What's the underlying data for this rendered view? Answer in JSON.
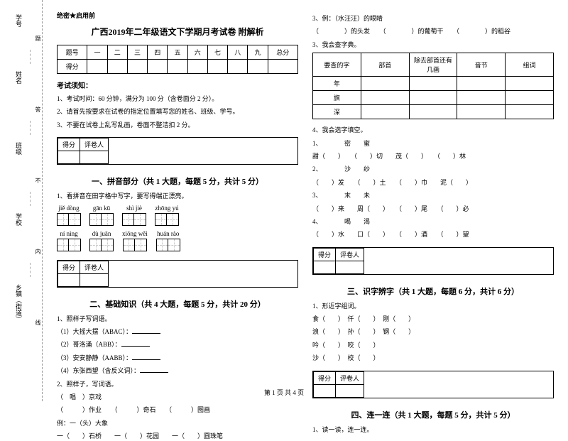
{
  "meta": {
    "secret": "绝密★启用前",
    "title": "广西2019年二年级语文下学期月考试卷 附解析",
    "footer": "第 1 页 共 4 页"
  },
  "binding": {
    "labels": [
      "学号",
      "姓名",
      "班级",
      "学校",
      "乡镇（街道）"
    ],
    "cuts": [
      "题",
      "答",
      "不",
      "内",
      "线"
    ]
  },
  "score_table": {
    "headers": [
      "题号",
      "一",
      "二",
      "三",
      "四",
      "五",
      "六",
      "七",
      "八",
      "九",
      "总分"
    ],
    "row_label": "得分"
  },
  "notice": {
    "title": "考试须知：",
    "items": [
      "1、考试时间：60 分钟，满分为 100 分（含卷面分 2 分）。",
      "2、请首先按要求在试卷的指定位置填写您的姓名、班级、学号。",
      "3、不要在试卷上乱写乱画，卷面不整洁扣 2 分。"
    ]
  },
  "scorebox": {
    "c1": "得分",
    "c2": "评卷人"
  },
  "sec1": {
    "title": "一、拼音部分（共 1 大题，每题 5 分，共计 5 分）",
    "q1": "1、看拼音在田字格中写字，要写得端正漂亮。",
    "pinyin": [
      [
        "jiě dòng",
        "gān kū",
        "shì jiè",
        "zhōng yú"
      ],
      [
        "ní nìng",
        "dù juān",
        "xiōng wěi",
        "huán rào"
      ]
    ]
  },
  "sec2": {
    "title": "二、基础知识（共 4 大题，每题 5 分，共计 20 分）",
    "q1": "1、照样子写词语。",
    "items": [
      "（1）大摇大摆（ABAC）：",
      "（2）哥洛涌（ABB）：",
      "（3）安安静静（AABB）：",
      "（4）东张西望（含反义词）："
    ],
    "q2": "2、照样子，写词语。",
    "ex2a": "（　唱　）京戏",
    "ex2b": "（　　　）作业　　（　　　）奇石　　（　　　）图画",
    "q3": "例：一（头）大象",
    "ex3": "一（　　）石桥　　一（　　）花园　　一（　　）圆珠笔"
  },
  "right": {
    "q3": "3、例：（水汪汪）的眼睛",
    "q3_line": "（　　　　）的头发　　（　　　　）的葡萄干　　（　　　　）的稻谷",
    "q_dict": "3、我会查字典。",
    "dict_headers": [
      "要查的字",
      "部首",
      "除去部首还有几画",
      "音节",
      "组词"
    ],
    "dict_chars": [
      "年",
      "旗",
      "深"
    ],
    "q4": "4、我会选字填空。",
    "lines": [
      "1、　　　　密　　蜜",
      "甜（　　）　　（　　）切　　茂（　　）　　（　　）林",
      "2、　　　　沙　　纱",
      "（　　）发　　（　　）土　　（　　）巾　　泥（　　）",
      "3、　　　　末　　未",
      "（　　）来　　周（　　）　　（　　）尾　　（　　）必",
      "4、　　　　喝　　渴",
      "（　　）水　　口（　　）　　（　　）酒　　（　　）望"
    ]
  },
  "sec3": {
    "title": "三、识字辨字（共 1 大题，每题 6 分，共计 6 分）",
    "q1": "1、形近字组词。",
    "pairs": [
      [
        "食（　　）",
        "仟（　　）",
        "刚（　　）"
      ],
      [
        "浪（　　）",
        "孙（　　）",
        "钢（　　）"
      ],
      [
        "吟（　　）",
        "咬（　　）",
        ""
      ],
      [
        "沙（　　）",
        "校（　　）",
        ""
      ]
    ]
  },
  "sec4": {
    "title": "四、连一连（共 1 大题，每题 5 分，共计 5 分）",
    "q1": "1、读一读，连一连。"
  }
}
